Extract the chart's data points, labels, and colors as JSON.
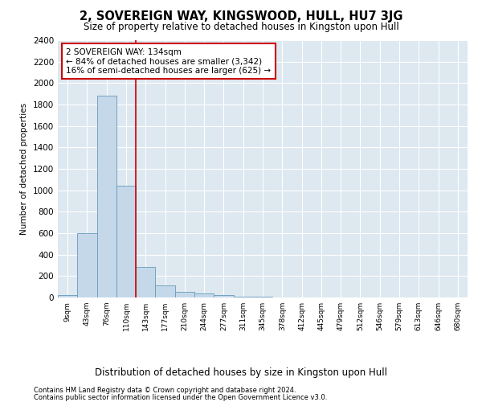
{
  "title": "2, SOVEREIGN WAY, KINGSWOOD, HULL, HU7 3JG",
  "subtitle": "Size of property relative to detached houses in Kingston upon Hull",
  "xlabel": "Distribution of detached houses by size in Kingston upon Hull",
  "ylabel": "Number of detached properties",
  "footnote1": "Contains HM Land Registry data © Crown copyright and database right 2024.",
  "footnote2": "Contains public sector information licensed under the Open Government Licence v3.0.",
  "annotation_line1": "2 SOVEREIGN WAY: 134sqm",
  "annotation_line2": "← 84% of detached houses are smaller (3,342)",
  "annotation_line3": "16% of semi-detached houses are larger (625) →",
  "bar_color": "#c5d8ea",
  "bar_edge_color": "#6699bb",
  "vline_color": "#cc0000",
  "annotation_box_color": "#ffffff",
  "annotation_box_edge": "#cc0000",
  "bg_color": "#dde8f0",
  "categories": [
    "9sqm",
    "43sqm",
    "76sqm",
    "110sqm",
    "143sqm",
    "177sqm",
    "210sqm",
    "244sqm",
    "277sqm",
    "311sqm",
    "345sqm",
    "378sqm",
    "412sqm",
    "445sqm",
    "479sqm",
    "512sqm",
    "546sqm",
    "579sqm",
    "613sqm",
    "646sqm",
    "680sqm"
  ],
  "values": [
    20,
    600,
    1880,
    1040,
    285,
    110,
    50,
    35,
    25,
    5,
    5,
    0,
    0,
    0,
    0,
    0,
    0,
    0,
    0,
    0,
    0
  ],
  "vline_position": 3.5,
  "ylim": [
    0,
    2400
  ],
  "yticks": [
    0,
    200,
    400,
    600,
    800,
    1000,
    1200,
    1400,
    1600,
    1800,
    2000,
    2200,
    2400
  ]
}
